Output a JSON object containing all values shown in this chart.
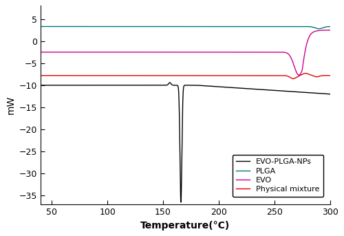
{
  "title": "",
  "xlabel": "Temperature(°C)",
  "ylabel": "mW",
  "xlim": [
    40,
    300
  ],
  "ylim": [
    -37,
    8
  ],
  "yticks": [
    5,
    0,
    -5,
    -10,
    -15,
    -20,
    -25,
    -30,
    -35
  ],
  "xticks": [
    50,
    100,
    150,
    200,
    250,
    300
  ],
  "legend_labels": [
    "EVO-PLGA-NPs",
    "PLGA",
    "EVO",
    "Physical mixture"
  ],
  "colors": {
    "EVO_PLGA_NPs": "#000000",
    "PLGA": "#007878",
    "EVO": "#cc0088",
    "Physical_mixture": "#dd0000"
  },
  "figsize": [
    5.0,
    3.43
  ],
  "dpi": 100
}
